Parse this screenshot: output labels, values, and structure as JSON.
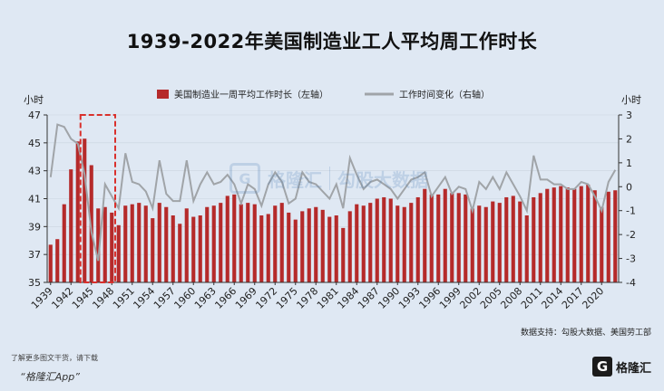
{
  "title": "1939-2022年美国制造业工人平均周工作时长",
  "source": "数据支持：勾股大数据、美国劳工部",
  "footer": {
    "note": "了解更多图文干货，请下载",
    "app": "“格隆汇App”",
    "brand": "格隆汇",
    "brand_mark": "G"
  },
  "watermark": {
    "left": "格隆汇",
    "right": "勾股大数据"
  },
  "colors": {
    "bar": "#b52a2a",
    "line": "#a0a4a8",
    "highlight": "#d9302c"
  },
  "chart_data": {
    "type": "bar",
    "left_axis_unit": "小时",
    "right_axis_unit": "小时",
    "y_left_lim": [
      35,
      47
    ],
    "y_left_ticks": [
      35,
      37,
      39,
      41,
      43,
      45,
      47
    ],
    "y_right_lim": [
      -4,
      3
    ],
    "y_right_ticks": [
      -4,
      -3,
      -2,
      -1,
      0,
      1,
      2,
      3
    ],
    "x_tick_labels": [
      "1939",
      "1942",
      "1945",
      "1948",
      "1951",
      "1954",
      "1957",
      "1960",
      "1963",
      "1966",
      "1969",
      "1972",
      "1975",
      "1978",
      "1981",
      "1984",
      "1987",
      "1990",
      "1993",
      "1996",
      "1999",
      "2002",
      "2005",
      "2008",
      "2011",
      "2014",
      "2017",
      "2020"
    ],
    "years": [
      1939,
      1940,
      1941,
      1942,
      1943,
      1944,
      1945,
      1946,
      1947,
      1948,
      1949,
      1950,
      1951,
      1952,
      1953,
      1954,
      1955,
      1956,
      1957,
      1958,
      1959,
      1960,
      1961,
      1962,
      1963,
      1964,
      1965,
      1966,
      1967,
      1968,
      1969,
      1970,
      1971,
      1972,
      1973,
      1974,
      1975,
      1976,
      1977,
      1978,
      1979,
      1980,
      1981,
      1982,
      1983,
      1984,
      1985,
      1986,
      1987,
      1988,
      1989,
      1990,
      1991,
      1992,
      1993,
      1994,
      1995,
      1996,
      1997,
      1998,
      1999,
      2000,
      2001,
      2002,
      2003,
      2004,
      2005,
      2006,
      2007,
      2008,
      2009,
      2010,
      2011,
      2012,
      2013,
      2014,
      2015,
      2016,
      2017,
      2018,
      2019,
      2020,
      2021,
      2022
    ],
    "series": [
      {
        "name": "美国制造业一周平均工作时长（左轴）",
        "axis": "left",
        "chart": "bar",
        "values": [
          37.7,
          38.1,
          40.6,
          43.1,
          45.1,
          45.3,
          43.4,
          40.3,
          40.4,
          40.0,
          39.1,
          40.5,
          40.6,
          40.7,
          40.5,
          39.6,
          40.7,
          40.4,
          39.8,
          39.2,
          40.3,
          39.7,
          39.8,
          40.4,
          40.5,
          40.7,
          41.2,
          41.3,
          40.6,
          40.7,
          40.6,
          39.8,
          39.9,
          40.5,
          40.7,
          40.0,
          39.5,
          40.1,
          40.3,
          40.4,
          40.2,
          39.7,
          39.8,
          38.9,
          40.1,
          40.6,
          40.5,
          40.7,
          41.0,
          41.1,
          41.0,
          40.5,
          40.4,
          40.7,
          41.1,
          41.7,
          41.3,
          41.3,
          41.7,
          41.4,
          41.4,
          41.3,
          40.3,
          40.5,
          40.4,
          40.8,
          40.7,
          41.1,
          41.2,
          40.8,
          39.8,
          41.1,
          41.4,
          41.7,
          41.8,
          41.9,
          41.8,
          41.7,
          41.9,
          42.0,
          41.6,
          40.4,
          41.5,
          41.6
        ]
      },
      {
        "name": "工作时间变化（右轴）",
        "axis": "right",
        "chart": "line",
        "values": [
          0.4,
          2.6,
          2.5,
          2.0,
          1.8,
          0.5,
          -1.9,
          -3.1,
          0.1,
          -0.4,
          -0.9,
          1.4,
          0.2,
          0.1,
          -0.2,
          -0.9,
          1.1,
          -0.3,
          -0.6,
          -0.6,
          1.1,
          -0.6,
          0.1,
          0.6,
          0.1,
          0.2,
          0.5,
          0.1,
          -0.7,
          0.1,
          -0.1,
          -0.8,
          0.1,
          0.6,
          0.2,
          -0.7,
          -0.5,
          0.6,
          0.2,
          0.1,
          -0.2,
          -0.5,
          0.1,
          -0.9,
          1.2,
          0.5,
          -0.1,
          0.2,
          0.3,
          0.1,
          -0.1,
          -0.5,
          -0.1,
          0.3,
          0.4,
          0.6,
          -0.4,
          0.0,
          0.4,
          -0.3,
          0.0,
          -0.1,
          -1.0,
          0.2,
          -0.1,
          0.4,
          -0.1,
          0.6,
          0.1,
          -0.4,
          -1.0,
          1.3,
          0.3,
          0.3,
          0.1,
          0.1,
          -0.1,
          -0.1,
          0.2,
          0.1,
          -0.4,
          -1.0,
          0.2,
          0.7
        ]
      }
    ],
    "highlight_years": [
      1944,
      1948
    ]
  }
}
